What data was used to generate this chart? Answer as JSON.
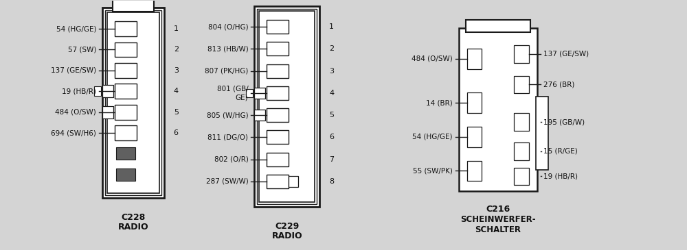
{
  "bg_color": "#d4d4d4",
  "line_color": "#1a1a1a",
  "text_color": "#111111",
  "white": "#ffffff",
  "dark": "#606060",
  "c228": {
    "title": "C228",
    "subtitle": "RADIO",
    "labels_left": [
      "54 (HG/GE)",
      "57 (SW)",
      "137 (GE/SW)",
      "19 (HB/R)",
      "484 (O/SW)",
      "694 (SW/H6)"
    ],
    "nums": [
      "1",
      "2",
      "3",
      "4",
      "5",
      "6"
    ]
  },
  "c229": {
    "title": "C229",
    "subtitle": "RADIO",
    "labels_left": [
      "804 (O/HG)",
      "813 (HB/W)",
      "807 (PK/HG)",
      "801 (GB/\nGE)",
      "805 (W/HG)",
      "811 (DG/O)",
      "802 (O/R)",
      "287 (SW/W)"
    ],
    "nums": [
      "1",
      "2",
      "3",
      "4",
      "5",
      "6",
      "7",
      "8"
    ]
  },
  "c216": {
    "title": "C216",
    "subtitle1": "SCHEINWERFER-",
    "subtitle2": "SCHALTER",
    "labels_left": [
      "484 (O/SW)",
      "14 (BR)",
      "54 (HG/GE)",
      "55 (SW/PK)"
    ],
    "labels_right": [
      "137 (GE/SW)",
      "276 (BR)",
      "195 (GB/W)",
      "15 (R/GE)",
      "19 (HB/R)"
    ]
  }
}
